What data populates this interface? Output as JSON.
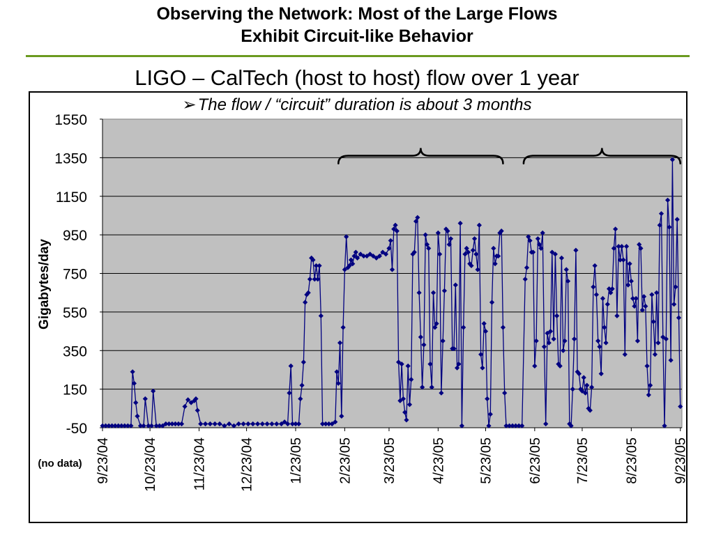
{
  "slide": {
    "title_line1": "Observing the Network: Most of the Large Flows",
    "title_line2": "Exhibit Circuit-like Behavior"
  },
  "chart_data": {
    "type": "line",
    "title": "LIGO – CalTech (host to host) flow over 1 year",
    "subtitle_bullet": "➢",
    "subtitle": "The flow / “circuit” duration is about 3 months",
    "ylabel": "Gigabytes/day",
    "xlabel": "",
    "no_data_label": "(no data)",
    "ylim": [
      -50,
      1550
    ],
    "y_ticks": [
      -50,
      150,
      350,
      550,
      750,
      950,
      1150,
      1350,
      1550
    ],
    "x_range": [
      "2004-09-23",
      "2005-09-24"
    ],
    "x_ticks": [
      "9/23/04",
      "10/23/04",
      "11/23/04",
      "12/23/04",
      "1/23/05",
      "2/23/05",
      "3/23/05",
      "4/23/05",
      "5/23/05",
      "6/23/05",
      "7/23/05",
      "8/23/05",
      "9/23/05"
    ],
    "grid": "horizontal",
    "plot_background": "#c0c0c0",
    "line_color": "#000080",
    "marker": "diamond",
    "annotations": [
      {
        "type": "brace",
        "from": "2/19/05",
        "to": "6/3/05",
        "at_y": 1320,
        "height": 80
      },
      {
        "type": "brace",
        "from": "6/16/05",
        "to": "9/23/05",
        "at_y": 1320,
        "height": 80
      }
    ],
    "series": [
      {
        "values": [
          [
            "9/23/04",
            -40
          ],
          [
            "9/25/04",
            -40
          ],
          [
            "9/27/04",
            -40
          ],
          [
            "9/29/04",
            -40
          ],
          [
            "10/1/04",
            -40
          ],
          [
            "10/3/04",
            -40
          ],
          [
            "10/5/04",
            -40
          ],
          [
            "10/7/04",
            -40
          ],
          [
            "10/9/04",
            -40
          ],
          [
            "10/11/04",
            -40
          ],
          [
            "10/12/04",
            240
          ],
          [
            "10/13/04",
            180
          ],
          [
            "10/14/04",
            80
          ],
          [
            "10/15/04",
            10
          ],
          [
            "10/17/04",
            -40
          ],
          [
            "10/19/04",
            -40
          ],
          [
            "10/20/04",
            100
          ],
          [
            "10/22/04",
            -40
          ],
          [
            "10/24/04",
            -40
          ],
          [
            "10/25/04",
            140
          ],
          [
            "10/27/04",
            -40
          ],
          [
            "10/29/04",
            -40
          ],
          [
            "10/31/04",
            -40
          ],
          [
            "11/2/04",
            -30
          ],
          [
            "11/4/04",
            -30
          ],
          [
            "11/6/04",
            -30
          ],
          [
            "11/8/04",
            -30
          ],
          [
            "11/10/04",
            -30
          ],
          [
            "11/12/04",
            -30
          ],
          [
            "11/14/04",
            60
          ],
          [
            "11/16/04",
            95
          ],
          [
            "11/18/04",
            80
          ],
          [
            "11/20/04",
            90
          ],
          [
            "11/21/04",
            100
          ],
          [
            "11/22/04",
            40
          ],
          [
            "11/24/04",
            -30
          ],
          [
            "11/27/04",
            -30
          ],
          [
            "11/30/04",
            -30
          ],
          [
            "12/3/04",
            -30
          ],
          [
            "12/6/04",
            -30
          ],
          [
            "12/9/04",
            -40
          ],
          [
            "12/12/04",
            -30
          ],
          [
            "12/15/04",
            -40
          ],
          [
            "12/18/04",
            -30
          ],
          [
            "12/21/04",
            -30
          ],
          [
            "12/24/04",
            -30
          ],
          [
            "12/27/04",
            -30
          ],
          [
            "12/30/04",
            -30
          ],
          [
            "1/2/05",
            -30
          ],
          [
            "1/5/05",
            -30
          ],
          [
            "1/8/05",
            -30
          ],
          [
            "1/11/05",
            -30
          ],
          [
            "1/14/05",
            -30
          ],
          [
            "1/16/05",
            -20
          ],
          [
            "1/18/05",
            -30
          ],
          [
            "1/19/05",
            130
          ],
          [
            "1/20/05",
            270
          ],
          [
            "1/21/05",
            -30
          ],
          [
            "1/23/05",
            -30
          ],
          [
            "1/25/05",
            -30
          ],
          [
            "1/26/05",
            100
          ],
          [
            "1/27/05",
            170
          ],
          [
            "1/28/05",
            290
          ],
          [
            "1/29/05",
            600
          ],
          [
            "1/30/05",
            640
          ],
          [
            "1/31/05",
            650
          ],
          [
            "2/1/05",
            720
          ],
          [
            "2/2/05",
            830
          ],
          [
            "2/3/05",
            820
          ],
          [
            "2/4/05",
            720
          ],
          [
            "2/5/05",
            790
          ],
          [
            "2/6/05",
            720
          ],
          [
            "2/7/05",
            790
          ],
          [
            "2/8/05",
            530
          ],
          [
            "2/9/05",
            -30
          ],
          [
            "2/11/05",
            -30
          ],
          [
            "2/13/05",
            -30
          ],
          [
            "2/15/05",
            -30
          ],
          [
            "2/17/05",
            -20
          ],
          [
            "2/18/05",
            240
          ],
          [
            "2/19/05",
            180
          ],
          [
            "2/20/05",
            390
          ],
          [
            "2/21/05",
            10
          ],
          [
            "2/22/05",
            470
          ],
          [
            "2/23/05",
            770
          ],
          [
            "2/24/05",
            940
          ],
          [
            "2/25/05",
            780
          ],
          [
            "2/26/05",
            790
          ],
          [
            "2/27/05",
            820
          ],
          [
            "2/28/05",
            800
          ],
          [
            "3/1/05",
            840
          ],
          [
            "3/2/05",
            860
          ],
          [
            "3/3/05",
            830
          ],
          [
            "3/5/05",
            850
          ],
          [
            "3/7/05",
            840
          ],
          [
            "3/9/05",
            840
          ],
          [
            "3/11/05",
            850
          ],
          [
            "3/13/05",
            840
          ],
          [
            "3/15/05",
            830
          ],
          [
            "3/17/05",
            840
          ],
          [
            "3/19/05",
            860
          ],
          [
            "3/21/05",
            850
          ],
          [
            "3/23/05",
            880
          ],
          [
            "3/24/05",
            920
          ],
          [
            "3/25/05",
            770
          ],
          [
            "3/26/05",
            980
          ],
          [
            "3/27/05",
            1000
          ],
          [
            "3/28/05",
            970
          ],
          [
            "3/29/05",
            290
          ],
          [
            "3/30/05",
            90
          ],
          [
            "3/31/05",
            280
          ],
          [
            "4/1/05",
            100
          ],
          [
            "4/2/05",
            30
          ],
          [
            "4/3/05",
            -10
          ],
          [
            "4/4/05",
            270
          ],
          [
            "4/5/05",
            70
          ],
          [
            "4/6/05",
            200
          ],
          [
            "4/7/05",
            850
          ],
          [
            "4/8/05",
            860
          ],
          [
            "4/9/05",
            1020
          ],
          [
            "4/10/05",
            1040
          ],
          [
            "4/11/05",
            650
          ],
          [
            "4/12/05",
            420
          ],
          [
            "4/13/05",
            160
          ],
          [
            "4/14/05",
            380
          ],
          [
            "4/15/05",
            950
          ],
          [
            "4/16/05",
            900
          ],
          [
            "4/17/05",
            880
          ],
          [
            "4/18/05",
            280
          ],
          [
            "4/19/05",
            160
          ],
          [
            "4/20/05",
            650
          ],
          [
            "4/21/05",
            470
          ],
          [
            "4/22/05",
            490
          ],
          [
            "4/23/05",
            960
          ],
          [
            "4/24/05",
            850
          ],
          [
            "4/25/05",
            130
          ],
          [
            "4/26/05",
            400
          ],
          [
            "4/27/05",
            660
          ],
          [
            "4/28/05",
            980
          ],
          [
            "4/29/05",
            970
          ],
          [
            "4/30/05",
            900
          ],
          [
            "5/1/05",
            930
          ],
          [
            "5/2/05",
            360
          ],
          [
            "5/3/05",
            360
          ],
          [
            "5/4/05",
            690
          ],
          [
            "5/5/05",
            260
          ],
          [
            "5/6/05",
            280
          ],
          [
            "5/7/05",
            1010
          ],
          [
            "5/8/05",
            -40
          ],
          [
            "5/9/05",
            470
          ],
          [
            "5/10/05",
            850
          ],
          [
            "5/11/05",
            880
          ],
          [
            "5/12/05",
            860
          ],
          [
            "5/13/05",
            800
          ],
          [
            "5/14/05",
            790
          ],
          [
            "5/15/05",
            870
          ],
          [
            "5/16/05",
            930
          ],
          [
            "5/17/05",
            850
          ],
          [
            "5/18/05",
            770
          ],
          [
            "5/19/05",
            1000
          ],
          [
            "5/20/05",
            330
          ],
          [
            "5/21/05",
            260
          ],
          [
            "5/22/05",
            490
          ],
          [
            "5/23/05",
            450
          ],
          [
            "5/24/05",
            100
          ],
          [
            "5/25/05",
            -40
          ],
          [
            "5/26/05",
            20
          ],
          [
            "5/27/05",
            600
          ],
          [
            "5/28/05",
            880
          ],
          [
            "5/29/05",
            800
          ],
          [
            "5/30/05",
            840
          ],
          [
            "5/31/05",
            840
          ],
          [
            "6/1/05",
            960
          ],
          [
            "6/2/05",
            970
          ],
          [
            "6/3/05",
            470
          ],
          [
            "6/4/05",
            130
          ],
          [
            "6/5/05",
            -40
          ],
          [
            "6/7/05",
            -40
          ],
          [
            "6/9/05",
            -40
          ],
          [
            "6/11/05",
            -40
          ],
          [
            "6/13/05",
            -40
          ],
          [
            "6/15/05",
            -40
          ],
          [
            "6/17/05",
            720
          ],
          [
            "6/18/05",
            780
          ],
          [
            "6/19/05",
            940
          ],
          [
            "6/20/05",
            920
          ],
          [
            "6/21/05",
            860
          ],
          [
            "6/22/05",
            860
          ],
          [
            "6/23/05",
            270
          ],
          [
            "6/24/05",
            400
          ],
          [
            "6/25/05",
            930
          ],
          [
            "6/26/05",
            900
          ],
          [
            "6/27/05",
            880
          ],
          [
            "6/28/05",
            960
          ],
          [
            "6/29/05",
            370
          ],
          [
            "6/30/05",
            -30
          ],
          [
            "7/1/05",
            440
          ],
          [
            "7/2/05",
            390
          ],
          [
            "7/3/05",
            450
          ],
          [
            "7/4/05",
            860
          ],
          [
            "7/5/05",
            410
          ],
          [
            "7/6/05",
            850
          ],
          [
            "7/7/05",
            530
          ],
          [
            "7/8/05",
            280
          ],
          [
            "7/9/05",
            270
          ],
          [
            "7/10/05",
            830
          ],
          [
            "7/11/05",
            350
          ],
          [
            "7/12/05",
            400
          ],
          [
            "7/13/05",
            770
          ],
          [
            "7/14/05",
            710
          ],
          [
            "7/15/05",
            -30
          ],
          [
            "7/16/05",
            -40
          ],
          [
            "7/17/05",
            150
          ],
          [
            "7/18/05",
            410
          ],
          [
            "7/19/05",
            870
          ],
          [
            "7/20/05",
            240
          ],
          [
            "7/21/05",
            230
          ],
          [
            "7/22/05",
            150
          ],
          [
            "7/23/05",
            140
          ],
          [
            "7/24/05",
            210
          ],
          [
            "7/25/05",
            130
          ],
          [
            "7/26/05",
            170
          ],
          [
            "7/27/05",
            50
          ],
          [
            "7/28/05",
            40
          ],
          [
            "7/29/05",
            160
          ],
          [
            "7/30/05",
            680
          ],
          [
            "7/31/05",
            790
          ],
          [
            "8/1/05",
            640
          ],
          [
            "8/2/05",
            400
          ],
          [
            "8/3/05",
            370
          ],
          [
            "8/4/05",
            230
          ],
          [
            "8/5/05",
            620
          ],
          [
            "8/6/05",
            470
          ],
          [
            "8/7/05",
            390
          ],
          [
            "8/8/05",
            590
          ],
          [
            "8/9/05",
            670
          ],
          [
            "8/10/05",
            650
          ],
          [
            "8/11/05",
            670
          ],
          [
            "8/12/05",
            880
          ],
          [
            "8/13/05",
            980
          ],
          [
            "8/14/05",
            530
          ],
          [
            "8/15/05",
            890
          ],
          [
            "8/16/05",
            820
          ],
          [
            "8/17/05",
            890
          ],
          [
            "8/18/05",
            820
          ],
          [
            "8/19/05",
            330
          ],
          [
            "8/20/05",
            890
          ],
          [
            "8/21/05",
            690
          ],
          [
            "8/22/05",
            800
          ],
          [
            "8/23/05",
            710
          ],
          [
            "8/24/05",
            620
          ],
          [
            "8/25/05",
            580
          ],
          [
            "8/26/05",
            620
          ],
          [
            "8/27/05",
            400
          ],
          [
            "8/28/05",
            900
          ],
          [
            "8/29/05",
            880
          ],
          [
            "8/30/05",
            560
          ],
          [
            "8/31/05",
            630
          ],
          [
            "9/1/05",
            580
          ],
          [
            "9/2/05",
            270
          ],
          [
            "9/3/05",
            120
          ],
          [
            "9/4/05",
            170
          ],
          [
            "9/5/05",
            640
          ],
          [
            "9/6/05",
            500
          ],
          [
            "9/7/05",
            330
          ],
          [
            "9/8/05",
            650
          ],
          [
            "9/9/05",
            390
          ],
          [
            "9/10/05",
            1000
          ],
          [
            "9/11/05",
            1060
          ],
          [
            "9/12/05",
            420
          ],
          [
            "9/13/05",
            -40
          ],
          [
            "9/14/05",
            410
          ],
          [
            "9/15/05",
            1130
          ],
          [
            "9/16/05",
            990
          ],
          [
            "9/17/05",
            300
          ],
          [
            "9/18/05",
            1340
          ],
          [
            "9/19/05",
            590
          ],
          [
            "9/20/05",
            680
          ],
          [
            "9/21/05",
            1030
          ],
          [
            "9/22/05",
            520
          ],
          [
            "9/23/05",
            60
          ]
        ]
      }
    ]
  }
}
